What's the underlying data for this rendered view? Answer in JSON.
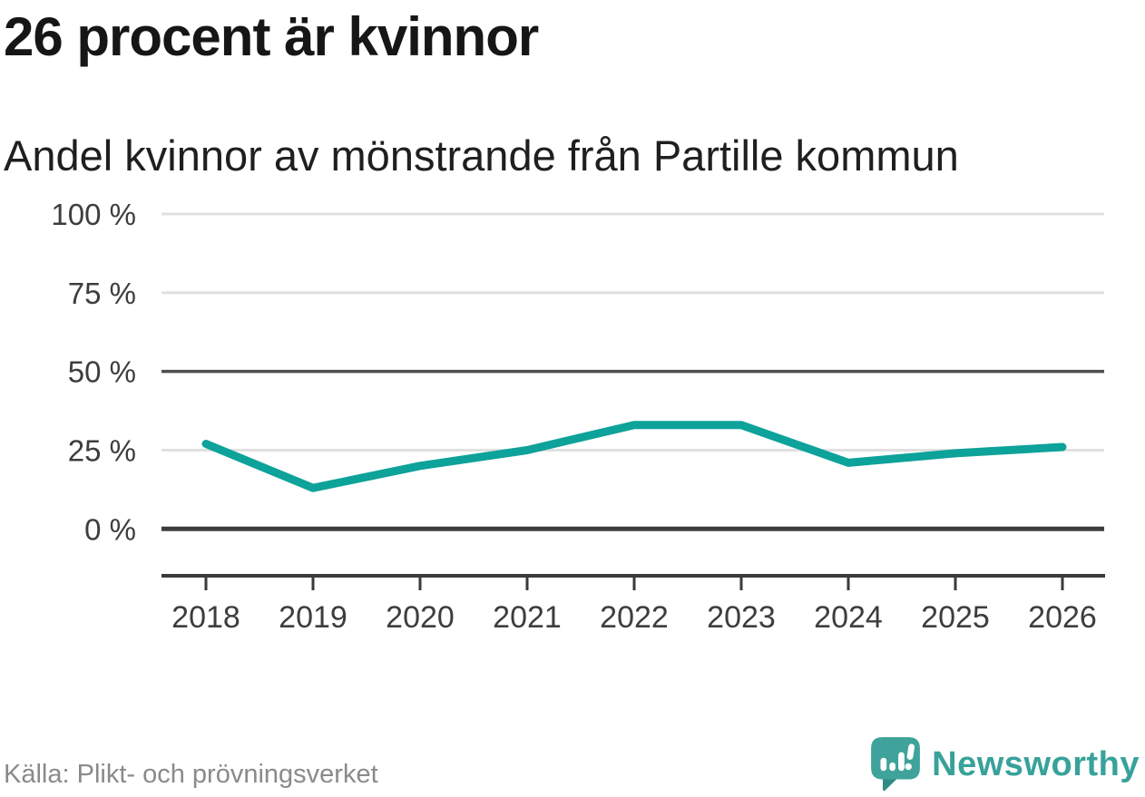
{
  "chart_data": {
    "type": "line",
    "title": "26 procent är kvinnor",
    "subtitle": "Andel kvinnor av mönstrande från Partille kommun",
    "categories": [
      "2018",
      "2019",
      "2020",
      "2021",
      "2022",
      "2023",
      "2024",
      "2025",
      "2026"
    ],
    "values": [
      27,
      13,
      20,
      25,
      33,
      33,
      21,
      24,
      26
    ],
    "unit": "%",
    "ylim": [
      0,
      100
    ],
    "yticks": [
      0,
      25,
      50,
      75,
      100
    ],
    "ytick_suffix": " %",
    "grid": true,
    "emphasized_gridlines": [
      0,
      50
    ],
    "legend": "none",
    "line_color": "#0da29a",
    "source": "Källa: Plikt- och prövningsverket"
  },
  "footer": {
    "brand": "Newsworthy"
  },
  "colors": {
    "accent_teal": "#0da29a",
    "brand_teal": "#38a29a",
    "grid_light": "#e0e0e0",
    "grid_dark": "#4a4a4a",
    "axis": "#3a3a3a",
    "label": "#3d3d3d",
    "muted_text": "#8a8a8a"
  }
}
